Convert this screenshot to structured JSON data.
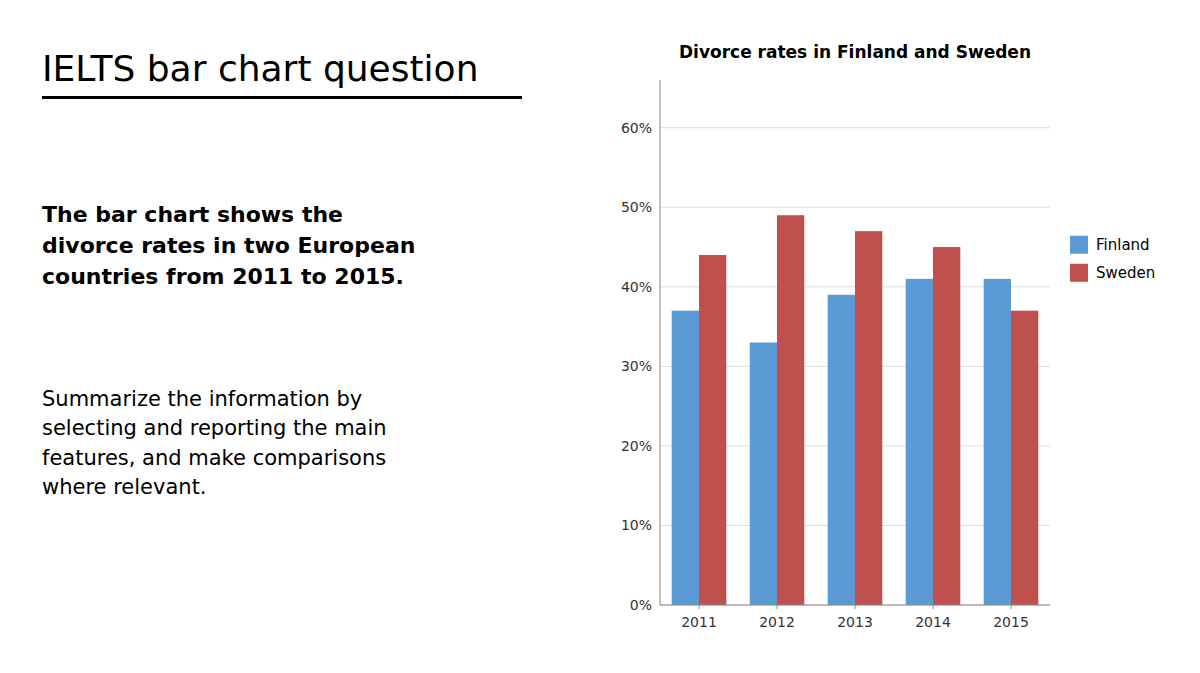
{
  "chart_data": {
    "type": "bar",
    "title": "Divorce rates in Finland and Sweden",
    "annotations": [
      "IELTS bar chart question",
      "The bar chart shows the\ndivorce rates in two European\ncountries from 2011 to 2015.",
      "Summarize the information by\nselecting and reporting the main\nfeatures, and make comparisons\nwhere relevant."
    ],
    "categories": [
      "2011",
      "2012",
      "2013",
      "2014",
      "2015"
    ],
    "series": [
      {
        "name": "Finland",
        "color": "#5B9BD5",
        "values": [
          37,
          33,
          39,
          41,
          41
        ]
      },
      {
        "name": "Sweden",
        "color": "#C0504D",
        "values": [
          44,
          49,
          47,
          45,
          37
        ]
      }
    ],
    "ylim": [
      0,
      66
    ],
    "yticks": [
      {
        "value": 0,
        "label": "0%"
      },
      {
        "value": 10,
        "label": "10%"
      },
      {
        "value": 20,
        "label": "20%"
      },
      {
        "value": 30,
        "label": "30%"
      },
      {
        "value": 40,
        "label": "40%"
      },
      {
        "value": 50,
        "label": "50%"
      },
      {
        "value": 60,
        "label": "60%"
      }
    ],
    "grid": true,
    "legend": "right"
  }
}
